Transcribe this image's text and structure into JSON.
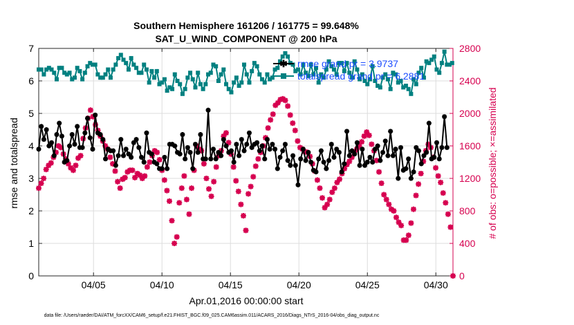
{
  "chart_data": {
    "type": "line",
    "title_line1": "Southern Hemisphere 161206 / 161775 = 99.648%",
    "title_line2": "SAT_U_WIND_COMPONENT @ 200 hPa",
    "xlabel": "Apr.01,2016 00:00:00 start",
    "ylabel_left": "rmse and totalspread",
    "ylabel_right": "# of obs: o=possible; ×=assimilated",
    "footer": "data file: /Users/raeder/DAI/ATM_forcXX/CAM6_setup/f.e21.FHIST_BGC.f09_025.CAM6assim.011/ACARS_2016/Diags_NTrS_2016-04/obs_diag_output.nc",
    "xlim": [
      1,
      31.25
    ],
    "ylim_left": [
      0,
      7
    ],
    "ylim_right": [
      0,
      2800
    ],
    "x_ticks": [
      5,
      10,
      15,
      20,
      25,
      30
    ],
    "x_tick_labels": [
      "04/05",
      "04/10",
      "04/15",
      "04/20",
      "04/25",
      "04/30"
    ],
    "y_left_ticks": [
      0,
      1,
      2,
      3,
      4,
      5,
      6,
      7
    ],
    "y_left_tick_labels": [
      "0",
      "1",
      "2",
      "3",
      "4",
      "5",
      "6",
      "7"
    ],
    "y_right_ticks": [
      0,
      400,
      800,
      1200,
      1600,
      2000,
      2400,
      2800
    ],
    "y_right_tick_labels": [
      "0",
      "400",
      "800",
      "1200",
      "1600",
      "2000",
      "2400",
      "2800"
    ],
    "grid": true,
    "legend": [
      {
        "label": "rmse grand pr = 3.9737",
        "color": "#000000",
        "marker": "asterisk"
      },
      {
        "label": "totalspread grand pr = 6.2881",
        "color": "#008080",
        "marker": "square"
      }
    ],
    "series": [
      {
        "name": "rmse",
        "axis": "left",
        "color": "#000000",
        "values": [
          3.9,
          4.6,
          4.2,
          4.5,
          4.0,
          4.1,
          3.7,
          4.35,
          4.7,
          4.3,
          3.5,
          3.55,
          4.0,
          4.35,
          4.05,
          4.6,
          3.95,
          3.95,
          4.4,
          4.85,
          4.25,
          3.9,
          4.95,
          4.4,
          4.35,
          4.2,
          3.6,
          3.9,
          3.85,
          3.85,
          3.4,
          3.7,
          4.2,
          3.7,
          3.9,
          3.75,
          3.65,
          4.1,
          4.2,
          3.95,
          3.65,
          3.5,
          4.4,
          3.8,
          3.75,
          3.5,
          3.45,
          3.3,
          3.3,
          3.65,
          3.3,
          4.05,
          4.05,
          4.0,
          3.8,
          3.75,
          4.35,
          3.6,
          3.95,
          3.8,
          3.3,
          4.05,
          3.8,
          4.35,
          3.6,
          3.6,
          5.1,
          3.6,
          3.9,
          3.6,
          3.8,
          3.7,
          4.2,
          4.0,
          3.8,
          3.85,
          3.5,
          4.05,
          3.7,
          4.2,
          3.85,
          4.05,
          4.4,
          3.95,
          4.05,
          4.1,
          3.85,
          4.0,
          3.6,
          4.2,
          3.9,
          4.05,
          3.9,
          3.3,
          3.65,
          3.85,
          4.05,
          3.55,
          3.4,
          3.7,
          3.4,
          2.8,
          3.6,
          3.9,
          3.55,
          3.8,
          3.5,
          3.25,
          3.2,
          3.6,
          3.85,
          3.5,
          3.3,
          3.55,
          4.05,
          3.65,
          3.9,
          3.8,
          3.2,
          3.45,
          4.45,
          3.7,
          3.85,
          3.75,
          4.1,
          3.4,
          3.9,
          3.4,
          3.5,
          3.65,
          3.5,
          3.9,
          4.0,
          3.55,
          3.8,
          4.15,
          3.7,
          4.45,
          3.7,
          3.9,
          3.0,
          3.95,
          3.25,
          3.3,
          3.6,
          3.0,
          3.2,
          3.95,
          3.85,
          3.45,
          3.7,
          3.8,
          4.7,
          3.6,
          3.65,
          4.1,
          3.6,
          3.95,
          4.9,
          3.95
        ],
        "xstart": 1,
        "xstep": 0.1875
      },
      {
        "name": "totalspread",
        "axis": "left",
        "color": "#008080",
        "values": [
          6.35,
          6.35,
          6.2,
          6.35,
          6.4,
          6.35,
          6.25,
          6.05,
          6.4,
          6.4,
          6.25,
          6.2,
          6.25,
          6.05,
          6.1,
          6.4,
          6.3,
          6.05,
          6.25,
          6.45,
          6.55,
          6.5,
          6.5,
          6.2,
          6.1,
          6.1,
          6.2,
          6.35,
          6.1,
          6.35,
          6.5,
          6.7,
          6.8,
          6.65,
          6.55,
          6.35,
          6.7,
          6.5,
          6.4,
          6.25,
          6.25,
          6.5,
          6.35,
          5.95,
          6.3,
          6.1,
          6.3,
          5.9,
          5.95,
          6.05,
          5.7,
          5.8,
          5.75,
          6.2,
          6.0,
          5.9,
          5.6,
          5.75,
          6.1,
          6.25,
          6.05,
          5.8,
          6.25,
          5.9,
          5.75,
          5.9,
          6.2,
          6.25,
          6.5,
          6.45,
          6.0,
          6.2,
          6.35,
          5.9,
          5.75,
          5.65,
          5.95,
          6.1,
          5.85,
          5.95,
          6.5,
          6.2,
          5.95,
          6.3,
          6.55,
          6.45,
          6.2,
          6.05,
          5.95,
          6.2,
          6.05,
          6.1,
          6.35,
          6.4,
          6.6,
          6.75,
          6.85,
          6.75,
          6.55,
          6.5,
          6.3,
          6.35,
          6.2,
          6.5,
          6.25,
          6.15,
          6.5,
          6.2,
          6.4,
          5.95,
          6.2,
          6.1,
          6.35,
          6.6,
          6.45,
          6.35,
          6.2,
          6.55,
          6.55,
          6.3,
          6.55,
          6.25,
          6.1,
          6.6,
          6.35,
          6.05,
          6.2,
          6.0,
          5.9,
          6.05,
          6.45,
          6.0,
          5.85,
          5.8,
          6.1,
          6.2,
          6.05,
          5.75,
          6.25,
          6.2,
          5.95,
          6.0,
          5.8,
          5.85,
          5.75,
          5.6,
          6.05,
          5.9,
          6.25,
          6.4,
          6.1,
          6.6,
          6.55,
          6.65,
          6.75,
          6.35,
          6.25,
          6.55,
          6.9,
          6.5,
          6.5,
          6.55
        ],
        "xstart": 1,
        "xstep": 0.1875
      },
      {
        "name": "observations_assimilated",
        "axis": "right",
        "color": "#d6004f",
        "values": [
          1080,
          1140,
          1200,
          1310,
          1360,
          1390,
          1460,
          1520,
          1600,
          1580,
          1500,
          1440,
          1380,
          1330,
          1300,
          1360,
          1450,
          1480,
          1690,
          1820,
          1940,
          2040,
          1960,
          1860,
          1790,
          1720,
          1660,
          1600,
          1560,
          1460,
          1380,
          1290,
          1160,
          1080,
          1190,
          1210,
          1280,
          1300,
          1300,
          1210,
          1260,
          1240,
          1200,
          1230,
          1340,
          1400,
          1480,
          1540,
          1520,
          1430,
          1300,
          1180,
          1050,
          920,
          680,
          400,
          480,
          900,
          1080,
          1230,
          940,
          760,
          1080,
          1300,
          1600,
          1560,
          1540,
          1380,
          1200,
          1070,
          980,
          1160,
          1340,
          1480,
          1540,
          1720,
          1760,
          1640,
          1500,
          1340,
          1170,
          1040,
          880,
          740,
          560,
          1010,
          1100,
          1220,
          1350,
          1440,
          1520,
          1600,
          1700,
          1820,
          1920,
          1990,
          2100,
          2130,
          2170,
          2180,
          2160,
          2090,
          1980,
          1880,
          1790,
          1660,
          1580,
          1560,
          1530,
          1520,
          1470,
          1380,
          1290,
          1180,
          1080,
          960,
          840,
          880,
          940,
          1030,
          1080,
          1150,
          1190,
          1260,
          1320,
          1370,
          1410,
          1460,
          1520,
          1560,
          1600,
          1650,
          1720,
          1770,
          1730,
          1620,
          1540,
          1420,
          1280,
          1140,
          1000,
          940,
          880,
          820,
          800,
          720,
          660,
          620,
          440,
          440,
          500,
          650,
          820,
          990,
          1130,
          1260,
          1410,
          1540,
          1620,
          1580,
          1460,
          1330,
          1230,
          1150,
          1020,
          900,
          760,
          600,
          0
        ]
      }
    ]
  },
  "legend_labels": {
    "rmse": "rmse grand pr = 3.9737",
    "spread": "totalspread grand pr = 6.2881"
  }
}
